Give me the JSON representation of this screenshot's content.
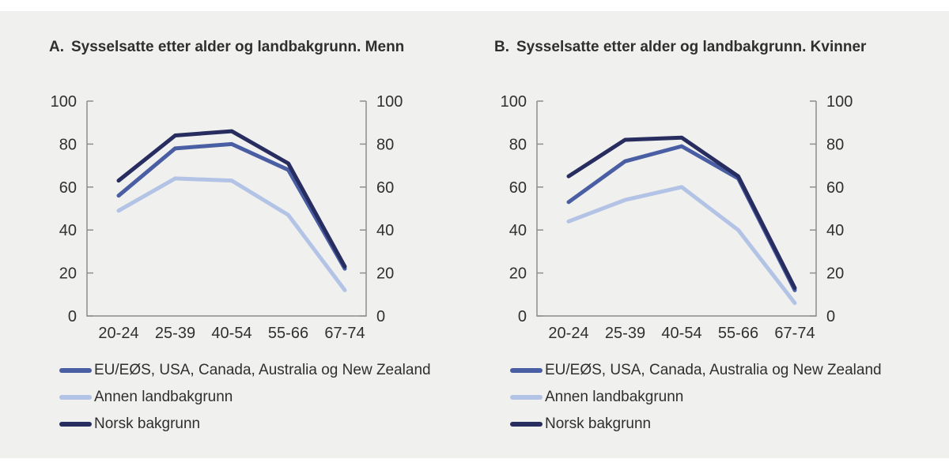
{
  "page": {
    "background_color": "#ffffff",
    "panel_color": "#f0f0ee",
    "axis_color": "#8e8e8e",
    "text_color": "#2f2f2f"
  },
  "colors": {
    "eu_eos": "#4a5ea4",
    "annen": "#b3c3e5",
    "norsk": "#282d60"
  },
  "chart_data": [
    {
      "type": "line",
      "title_prefix": "A.",
      "title": "Sysselsatte etter alder og landbakgrunn. Menn",
      "categories": [
        "20-24",
        "25-39",
        "40-54",
        "55-66",
        "67-74"
      ],
      "series": [
        {
          "name": "EU/EØS, USA, Canada, Australia og New Zealand",
          "color": "#4a5ea4",
          "values": [
            56,
            78,
            80,
            68,
            22
          ]
        },
        {
          "name": "Annen landbakgrunn",
          "color": "#b3c3e5",
          "values": [
            49,
            64,
            63,
            47,
            12
          ]
        },
        {
          "name": "Norsk bakgrunn",
          "color": "#282d60",
          "values": [
            63,
            84,
            86,
            71,
            23
          ]
        }
      ],
      "xlabel": "",
      "ylabel": "",
      "ylim": [
        0,
        100
      ],
      "yticks": [
        0,
        20,
        40,
        60,
        80,
        100
      ],
      "y_axis_sides": "both",
      "grid": false,
      "legend_position": "bottom-left"
    },
    {
      "type": "line",
      "title_prefix": "B.",
      "title": "Sysselsatte etter alder og landbakgrunn. Kvinner",
      "categories": [
        "20-24",
        "25-39",
        "40-54",
        "55-66",
        "67-74"
      ],
      "series": [
        {
          "name": "EU/EØS, USA, Canada, Australia og New Zealand",
          "color": "#4a5ea4",
          "values": [
            53,
            72,
            79,
            64,
            12
          ]
        },
        {
          "name": "Annen landbakgrunn",
          "color": "#b3c3e5",
          "values": [
            44,
            54,
            60,
            40,
            6
          ]
        },
        {
          "name": "Norsk bakgrunn",
          "color": "#282d60",
          "values": [
            65,
            82,
            83,
            65,
            13
          ]
        }
      ],
      "xlabel": "",
      "ylabel": "",
      "ylim": [
        0,
        100
      ],
      "yticks": [
        0,
        20,
        40,
        60,
        80,
        100
      ],
      "y_axis_sides": "both",
      "grid": false,
      "legend_position": "bottom-left"
    }
  ]
}
